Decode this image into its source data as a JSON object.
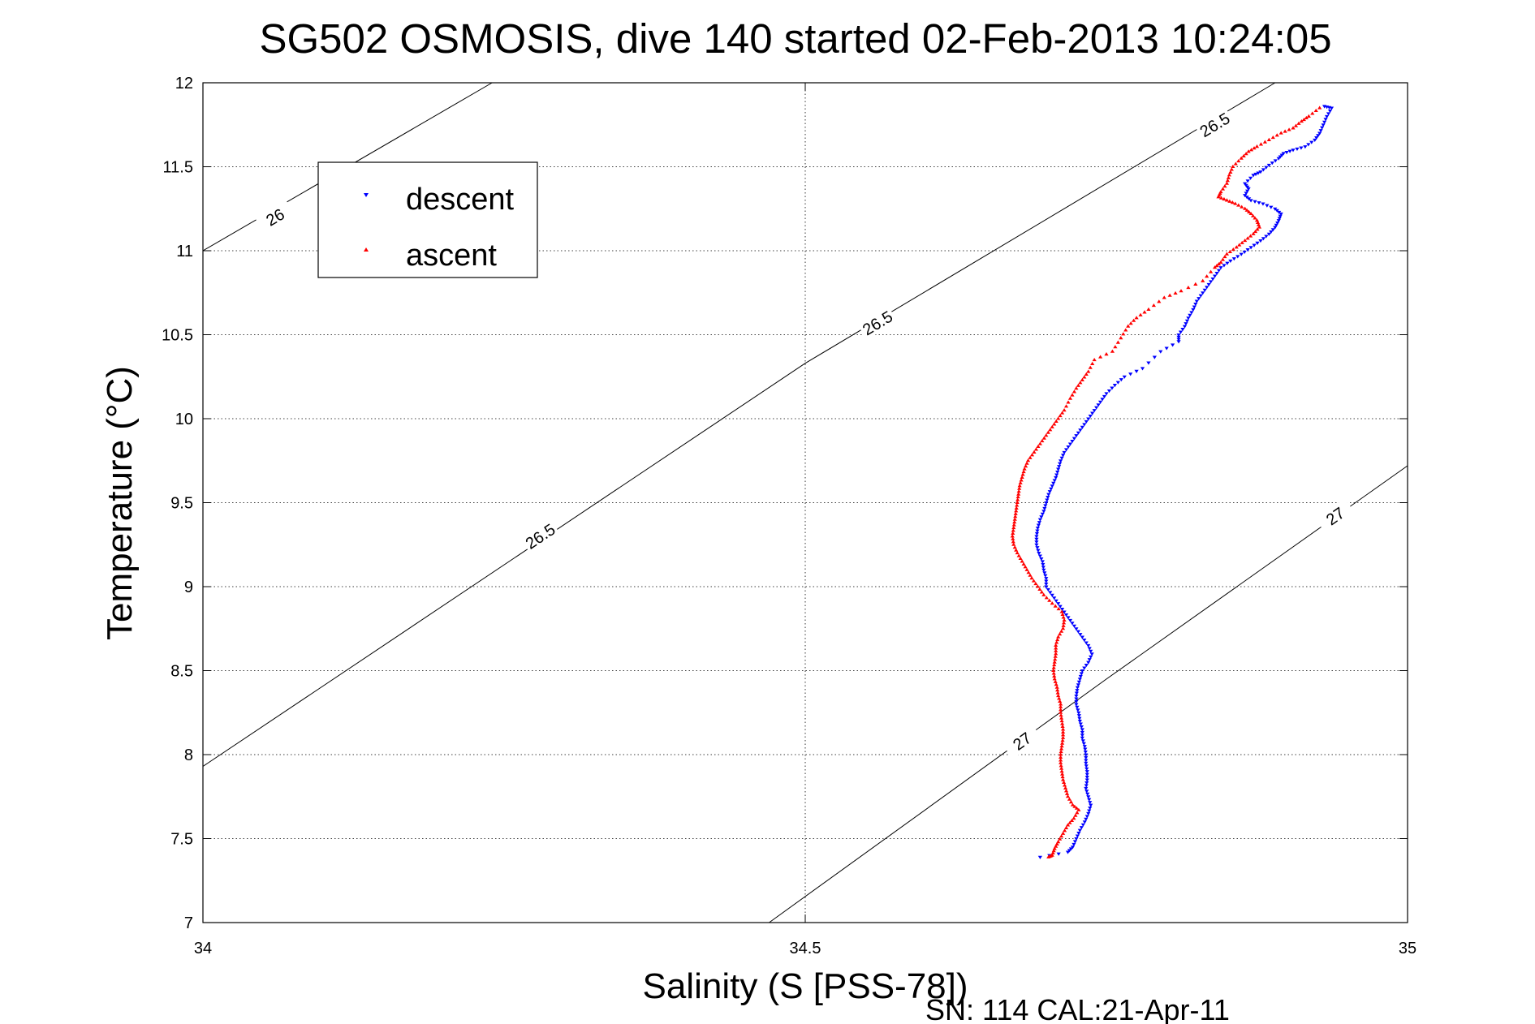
{
  "chart_data": {
    "type": "scatter",
    "title": "SG502 OSMOSIS, dive 140 started 02-Feb-2013 10:24:05",
    "xlabel": "Salinity (S [PSS-78])",
    "ylabel": "Temperature (°C)",
    "xlim": [
      34,
      35
    ],
    "ylim": [
      7,
      12
    ],
    "x_ticks": [
      "34",
      "34.5",
      "35"
    ],
    "y_ticks": [
      "7",
      "7.5",
      "8",
      "8.5",
      "9",
      "9.5",
      "10",
      "10.5",
      "11",
      "11.5",
      "12"
    ],
    "grid": true,
    "legend_position": "top-left",
    "footer_text": "SN: 114  CAL:21-Apr-11",
    "density_contours": [
      {
        "label": "26",
        "points": [
          [
            34.0,
            11.0
          ],
          [
            34.24,
            12.0
          ]
        ],
        "label_at": [
          34.06,
          11.2
        ]
      },
      {
        "label": "26.5",
        "points": [
          [
            34.0,
            7.93
          ],
          [
            34.5,
            10.33
          ],
          [
            34.89,
            12.0
          ]
        ],
        "label_ats": [
          [
            34.28,
            9.3
          ],
          [
            34.56,
            10.57
          ],
          [
            34.84,
            11.75
          ]
        ]
      },
      {
        "label": "27",
        "points": [
          [
            34.47,
            7.0
          ],
          [
            34.75,
            8.45
          ],
          [
            35.0,
            9.72
          ]
        ],
        "label_ats": [
          [
            34.68,
            8.08
          ],
          [
            34.94,
            9.42
          ]
        ]
      }
    ],
    "series": [
      {
        "name": "descent",
        "color": "#0000ff",
        "marker": "triangle-down",
        "points": [
          [
            34.931,
            11.86
          ],
          [
            34.937,
            11.85
          ],
          [
            34.933,
            11.8
          ],
          [
            34.93,
            11.75
          ],
          [
            34.927,
            11.7
          ],
          [
            34.923,
            11.66
          ],
          [
            34.915,
            11.62
          ],
          [
            34.905,
            11.6
          ],
          [
            34.897,
            11.58
          ],
          [
            34.893,
            11.55
          ],
          [
            34.885,
            11.51
          ],
          [
            34.878,
            11.47
          ],
          [
            34.872,
            11.45
          ],
          [
            34.865,
            11.4
          ],
          [
            34.868,
            11.37
          ],
          [
            34.865,
            11.33
          ],
          [
            34.87,
            11.3
          ],
          [
            34.88,
            11.28
          ],
          [
            34.89,
            11.25
          ],
          [
            34.895,
            11.22
          ],
          [
            34.893,
            11.18
          ],
          [
            34.89,
            11.14
          ],
          [
            34.885,
            11.1
          ],
          [
            34.878,
            11.06
          ],
          [
            34.87,
            11.02
          ],
          [
            34.862,
            10.98
          ],
          [
            34.853,
            10.94
          ],
          [
            34.845,
            10.9
          ],
          [
            34.84,
            10.85
          ],
          [
            34.835,
            10.8
          ],
          [
            34.83,
            10.75
          ],
          [
            34.825,
            10.7
          ],
          [
            34.822,
            10.65
          ],
          [
            34.818,
            10.6
          ],
          [
            34.815,
            10.55
          ],
          [
            34.81,
            10.5
          ],
          [
            34.81,
            10.46
          ],
          [
            34.795,
            10.4
          ],
          [
            34.78,
            10.3
          ],
          [
            34.765,
            10.25
          ],
          [
            34.757,
            10.2
          ],
          [
            34.75,
            10.15
          ],
          [
            34.745,
            10.1
          ],
          [
            34.74,
            10.05
          ],
          [
            34.735,
            10.0
          ],
          [
            34.73,
            9.95
          ],
          [
            34.725,
            9.9
          ],
          [
            34.72,
            9.85
          ],
          [
            34.715,
            9.8
          ],
          [
            34.712,
            9.75
          ],
          [
            34.71,
            9.7
          ],
          [
            34.708,
            9.65
          ],
          [
            34.705,
            9.6
          ],
          [
            34.702,
            9.55
          ],
          [
            34.7,
            9.5
          ],
          [
            34.698,
            9.45
          ],
          [
            34.695,
            9.4
          ],
          [
            34.693,
            9.35
          ],
          [
            34.692,
            9.3
          ],
          [
            34.692,
            9.25
          ],
          [
            34.694,
            9.2
          ],
          [
            34.697,
            9.15
          ],
          [
            34.698,
            9.1
          ],
          [
            34.7,
            9.05
          ],
          [
            34.7,
            9.0
          ],
          [
            34.705,
            8.95
          ],
          [
            34.71,
            8.9
          ],
          [
            34.715,
            8.85
          ],
          [
            34.72,
            8.8
          ],
          [
            34.725,
            8.75
          ],
          [
            34.73,
            8.7
          ],
          [
            34.735,
            8.65
          ],
          [
            34.738,
            8.6
          ],
          [
            34.735,
            8.55
          ],
          [
            34.73,
            8.5
          ],
          [
            34.728,
            8.45
          ],
          [
            34.726,
            8.4
          ],
          [
            34.725,
            8.35
          ],
          [
            34.725,
            8.3
          ],
          [
            34.727,
            8.25
          ],
          [
            34.728,
            8.2
          ],
          [
            34.73,
            8.15
          ],
          [
            34.73,
            8.1
          ],
          [
            34.732,
            8.05
          ],
          [
            34.733,
            8.0
          ],
          [
            34.733,
            7.95
          ],
          [
            34.734,
            7.9
          ],
          [
            34.734,
            7.85
          ],
          [
            34.733,
            7.8
          ],
          [
            34.735,
            7.75
          ],
          [
            34.737,
            7.7
          ],
          [
            34.735,
            7.65
          ],
          [
            34.732,
            7.6
          ],
          [
            34.728,
            7.55
          ],
          [
            34.725,
            7.5
          ],
          [
            34.722,
            7.45
          ],
          [
            34.718,
            7.42
          ],
          [
            34.695,
            7.39
          ]
        ]
      },
      {
        "name": "ascent",
        "color": "#ff0000",
        "marker": "triangle-up",
        "points": [
          [
            34.927,
            11.85
          ],
          [
            34.918,
            11.8
          ],
          [
            34.912,
            11.77
          ],
          [
            34.905,
            11.73
          ],
          [
            34.895,
            11.7
          ],
          [
            34.885,
            11.66
          ],
          [
            34.875,
            11.62
          ],
          [
            34.868,
            11.59
          ],
          [
            34.862,
            11.55
          ],
          [
            34.855,
            11.5
          ],
          [
            34.852,
            11.45
          ],
          [
            34.85,
            11.4
          ],
          [
            34.845,
            11.35
          ],
          [
            34.843,
            11.32
          ],
          [
            34.85,
            11.3
          ],
          [
            34.857,
            11.28
          ],
          [
            34.865,
            11.25
          ],
          [
            34.87,
            11.22
          ],
          [
            34.875,
            11.18
          ],
          [
            34.877,
            11.14
          ],
          [
            34.872,
            11.1
          ],
          [
            34.865,
            11.06
          ],
          [
            34.858,
            11.02
          ],
          [
            34.85,
            10.98
          ],
          [
            34.845,
            10.93
          ],
          [
            34.84,
            10.9
          ],
          [
            34.83,
            10.82
          ],
          [
            34.812,
            10.76
          ],
          [
            34.798,
            10.72
          ],
          [
            34.785,
            10.65
          ],
          [
            34.775,
            10.6
          ],
          [
            34.768,
            10.55
          ],
          [
            34.762,
            10.48
          ],
          [
            34.755,
            10.4
          ],
          [
            34.74,
            10.35
          ],
          [
            34.735,
            10.28
          ],
          [
            34.73,
            10.23
          ],
          [
            34.725,
            10.18
          ],
          [
            34.72,
            10.12
          ],
          [
            34.715,
            10.05
          ],
          [
            34.71,
            10.0
          ],
          [
            34.705,
            9.95
          ],
          [
            34.7,
            9.9
          ],
          [
            34.695,
            9.85
          ],
          [
            34.69,
            9.8
          ],
          [
            34.685,
            9.75
          ],
          [
            34.682,
            9.7
          ],
          [
            34.68,
            9.65
          ],
          [
            34.678,
            9.6
          ],
          [
            34.677,
            9.55
          ],
          [
            34.676,
            9.5
          ],
          [
            34.675,
            9.45
          ],
          [
            34.674,
            9.4
          ],
          [
            34.673,
            9.35
          ],
          [
            34.672,
            9.3
          ],
          [
            34.673,
            9.25
          ],
          [
            34.676,
            9.2
          ],
          [
            34.68,
            9.15
          ],
          [
            34.684,
            9.1
          ],
          [
            34.688,
            9.05
          ],
          [
            34.693,
            9.0
          ],
          [
            34.698,
            8.95
          ],
          [
            34.705,
            8.9
          ],
          [
            34.713,
            8.85
          ],
          [
            34.715,
            8.8
          ],
          [
            34.714,
            8.75
          ],
          [
            34.71,
            8.7
          ],
          [
            34.708,
            8.65
          ],
          [
            34.708,
            8.6
          ],
          [
            34.707,
            8.55
          ],
          [
            34.706,
            8.5
          ],
          [
            34.707,
            8.45
          ],
          [
            34.709,
            8.4
          ],
          [
            34.71,
            8.35
          ],
          [
            34.712,
            8.3
          ],
          [
            34.712,
            8.25
          ],
          [
            34.713,
            8.2
          ],
          [
            34.714,
            8.15
          ],
          [
            34.714,
            8.1
          ],
          [
            34.713,
            8.05
          ],
          [
            34.712,
            8.0
          ],
          [
            34.712,
            7.95
          ],
          [
            34.713,
            7.9
          ],
          [
            34.714,
            7.85
          ],
          [
            34.716,
            7.8
          ],
          [
            34.718,
            7.75
          ],
          [
            34.722,
            7.7
          ],
          [
            34.727,
            7.67
          ],
          [
            34.723,
            7.62
          ],
          [
            34.718,
            7.58
          ],
          [
            34.714,
            7.53
          ],
          [
            34.71,
            7.48
          ],
          [
            34.707,
            7.44
          ],
          [
            34.705,
            7.4
          ],
          [
            34.702,
            7.39
          ]
        ]
      }
    ]
  }
}
